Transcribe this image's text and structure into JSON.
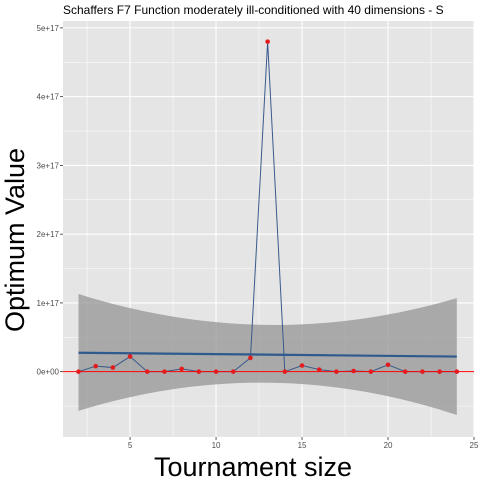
{
  "chart_data": {
    "type": "line",
    "title": "Schaffers F7 Function moderately ill-conditioned with 40 dimensions -  S",
    "xlabel": "Tournament size",
    "ylabel": "Optimum Value",
    "x_ticks": [
      5,
      10,
      15,
      20,
      25
    ],
    "y_ticks": [
      {
        "value": 0,
        "label": "0e+00"
      },
      {
        "value": 1e+17,
        "label": "1e+17"
      },
      {
        "value": 2e+17,
        "label": "2e+17"
      },
      {
        "value": 3e+17,
        "label": "3e+17"
      },
      {
        "value": 4e+17,
        "label": "4e+17"
      },
      {
        "value": 5e+17,
        "label": "5e+17"
      }
    ],
    "xlim": [
      1.1,
      25
    ],
    "ylim": [
      -9.5e+16,
      5.1e+17
    ],
    "grid": true,
    "series": [
      {
        "x": [
          2,
          3,
          4,
          5,
          6,
          7,
          8,
          9,
          10,
          11,
          12,
          13,
          14,
          15,
          16,
          17,
          18,
          19,
          20,
          21,
          22,
          23,
          24
        ],
        "values": [
          0,
          8000000000000000.0,
          6000000000000000.0,
          2.2e+16,
          0,
          0,
          4000000000000000.0,
          0,
          0,
          0,
          2e+16,
          4.8e+17,
          0,
          9000000000000000.0,
          3000000000000000.0,
          0,
          1000000000000000.0,
          0,
          1e+16,
          0,
          0,
          0,
          0
        ]
      }
    ],
    "trend": {
      "x": [
        2,
        24
      ],
      "values": [
        2.75e+16,
        2.2e+16
      ],
      "band_upper": [
        1.13e+17,
        1.07e+17
      ],
      "band_lower": [
        -5.7e+16,
        -6.3e+16
      ],
      "band_mid_upper": 6.8e+16,
      "band_mid_lower": -1.6e+16,
      "band_mid_x": 13
    },
    "hline": 0,
    "colors": {
      "panel": "#e5e5e5",
      "grid_major": "#ffffff",
      "line": "#3a5a8c",
      "points": "#e41a1c",
      "trend": "#2e5a8e",
      "band": "#999999",
      "hline": "#ff0000"
    }
  }
}
